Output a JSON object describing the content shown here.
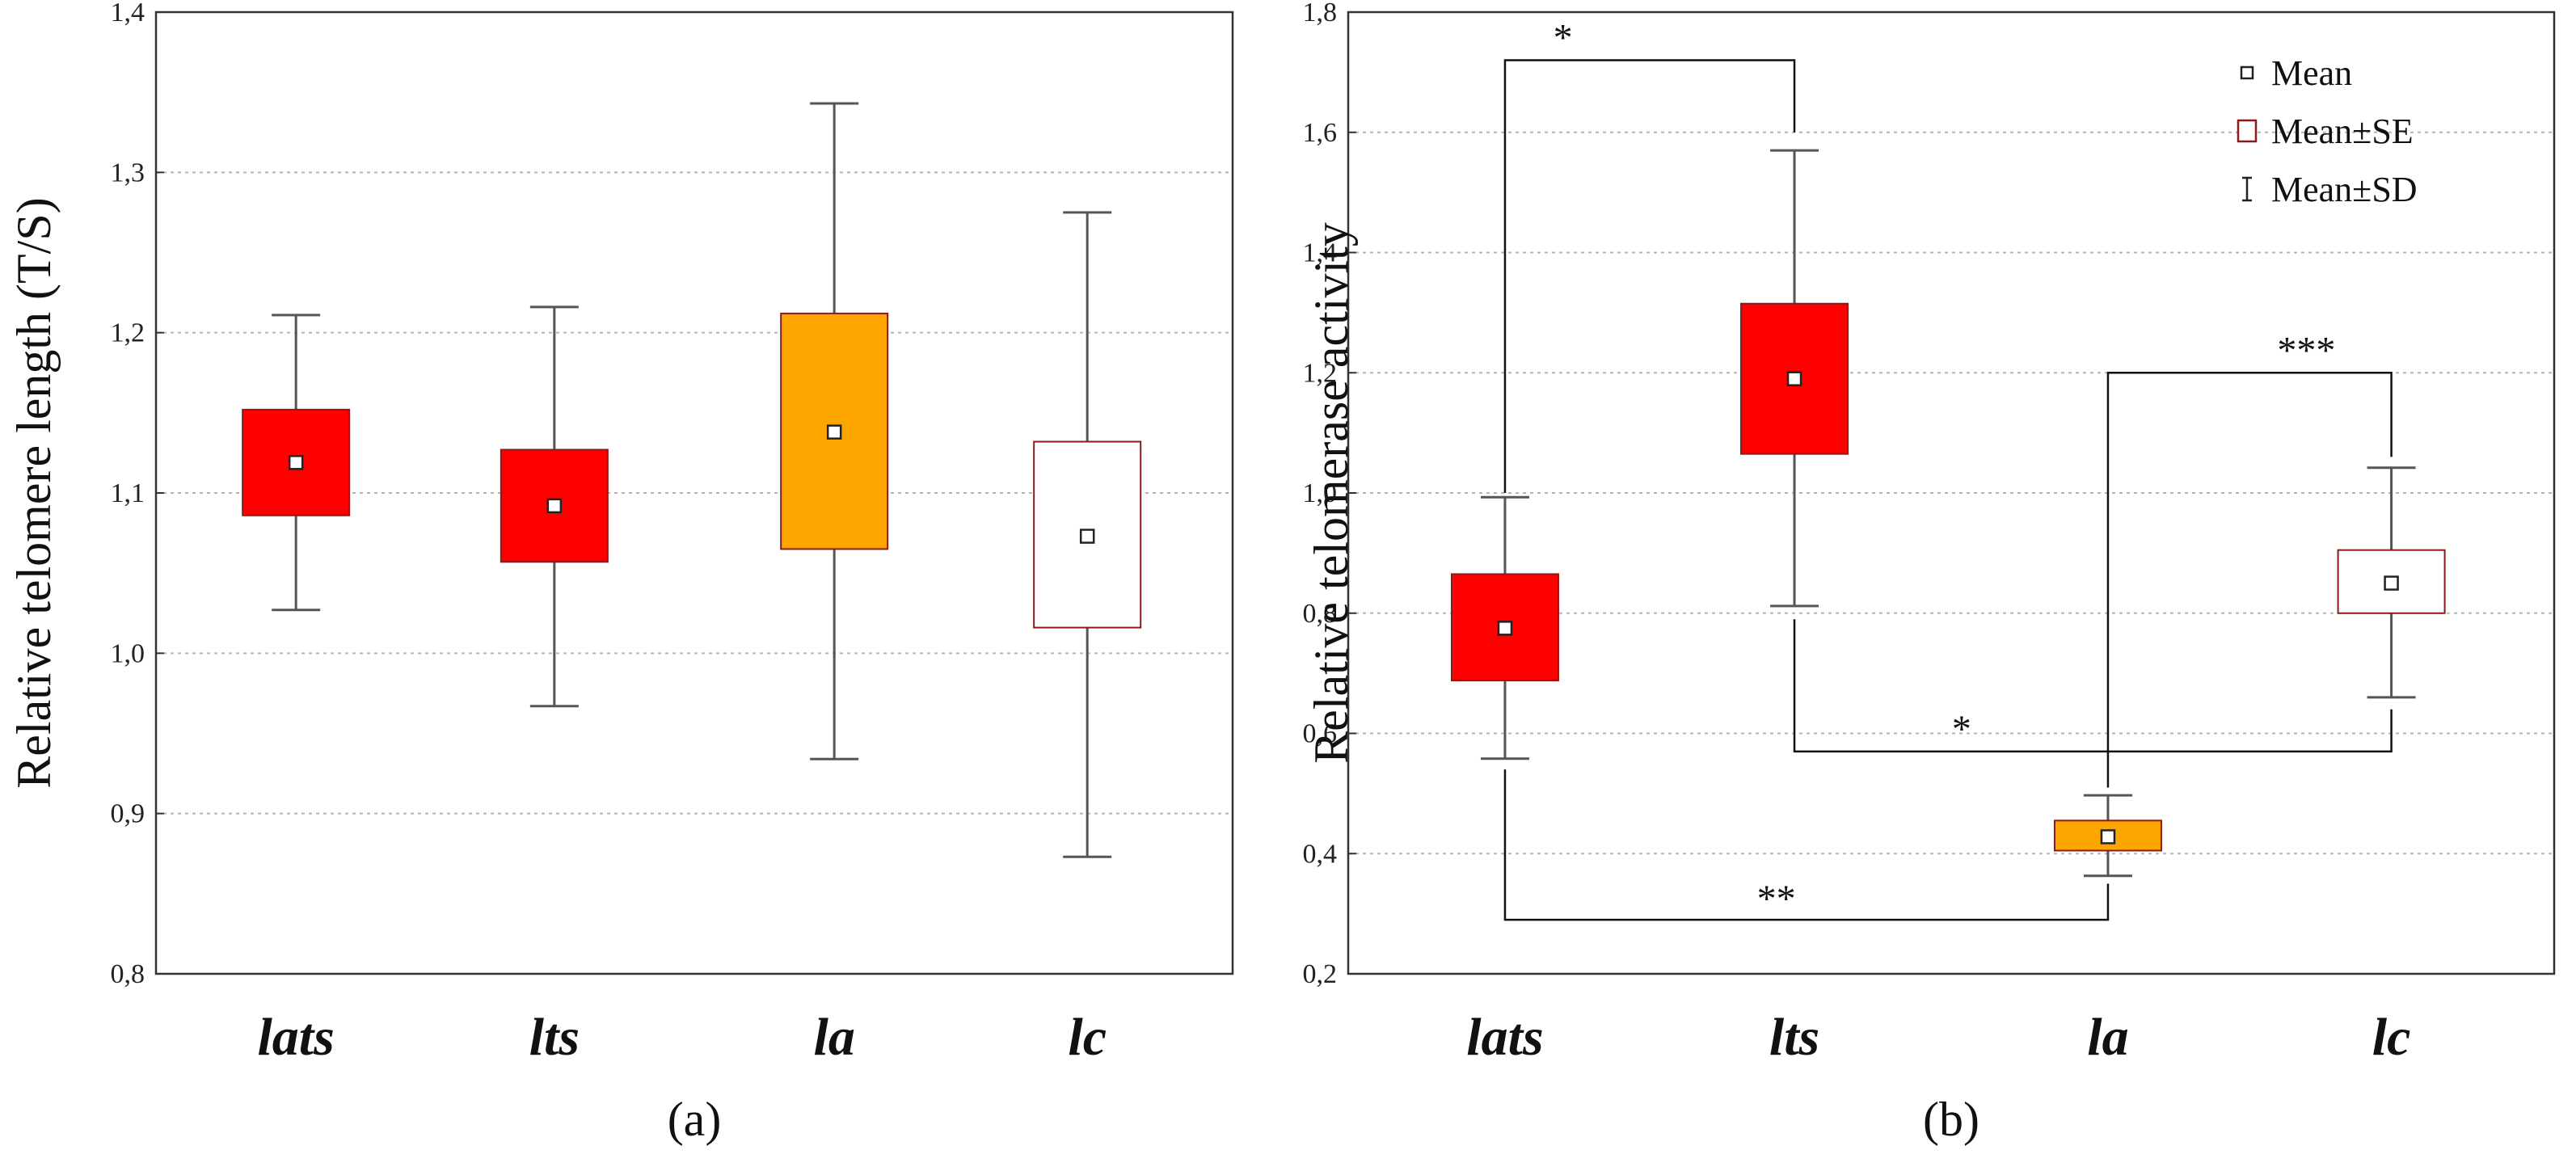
{
  "colors": {
    "lats": "#ff0000",
    "lts": "#ff0000",
    "la": "#ffa500",
    "lc": "#ffffff",
    "box_stroke": "#8b1a1a",
    "whisker": "#555555",
    "grid": "#b5b5b5"
  },
  "chart_data": [
    {
      "panel": "(a)",
      "type": "box",
      "ylabel": "Relative telomere length (T/S)",
      "ylim": [
        0.8,
        1.4
      ],
      "yticks": [
        "0,8",
        "0,9",
        "1,0",
        "1,1",
        "1,2",
        "1,3",
        "1,4"
      ],
      "ytick_values": [
        0.8,
        0.9,
        1.0,
        1.1,
        1.2,
        1.3,
        1.4
      ],
      "grid": true,
      "categories": [
        "lats",
        "lts",
        "la",
        "lc"
      ],
      "mean": [
        1.119,
        1.092,
        1.138,
        1.073
      ],
      "se_low": [
        1.086,
        1.057,
        1.065,
        1.016
      ],
      "se_high": [
        1.152,
        1.127,
        1.212,
        1.132
      ],
      "sd_low": [
        1.027,
        0.967,
        0.934,
        0.873
      ],
      "sd_high": [
        1.211,
        1.216,
        1.343,
        1.275
      ],
      "significance": []
    },
    {
      "panel": "(b)",
      "type": "box",
      "ylabel": "Relative telomerase activity",
      "ylim": [
        0.2,
        1.8
      ],
      "yticks": [
        "0,2",
        "0,4",
        "0,6",
        "0,8",
        "1,0",
        "1,2",
        "1,4",
        "1,6",
        "1,8"
      ],
      "ytick_values": [
        0.2,
        0.4,
        0.6,
        0.8,
        1.0,
        1.2,
        1.4,
        1.6,
        1.8
      ],
      "grid": true,
      "categories": [
        "lats",
        "lts",
        "la",
        "lc"
      ],
      "mean": [
        0.775,
        1.19,
        0.428,
        0.85
      ],
      "se_low": [
        0.688,
        1.065,
        0.405,
        0.8
      ],
      "se_high": [
        0.865,
        1.315,
        0.455,
        0.905
      ],
      "sd_low": [
        0.558,
        0.812,
        0.363,
        0.66
      ],
      "sd_high": [
        0.993,
        1.57,
        0.497,
        1.042
      ],
      "legend": {
        "position": "top-right",
        "entries": [
          "Mean",
          "Mean±SE",
          "Mean±SD"
        ]
      },
      "significance": [
        {
          "from": "lats",
          "to": "lts",
          "label": "*",
          "level": 1.72,
          "from_end": 1.0,
          "to_end": 1.6,
          "label_pos": 0.2
        },
        {
          "from": "la",
          "to": "lc",
          "label": "***",
          "level": 1.2,
          "from_end": 0.51,
          "to_end": 1.06,
          "label_pos": 0.7
        },
        {
          "from": "lts",
          "to": "lc",
          "label": "*",
          "level": 0.57,
          "from_end": 0.79,
          "to_end": 0.64,
          "label_pos": 0.28
        },
        {
          "from": "lats",
          "to": "la",
          "label": "**",
          "level": 0.29,
          "from_end": 0.54,
          "to_end": 0.35,
          "label_pos": 0.45
        }
      ]
    }
  ]
}
